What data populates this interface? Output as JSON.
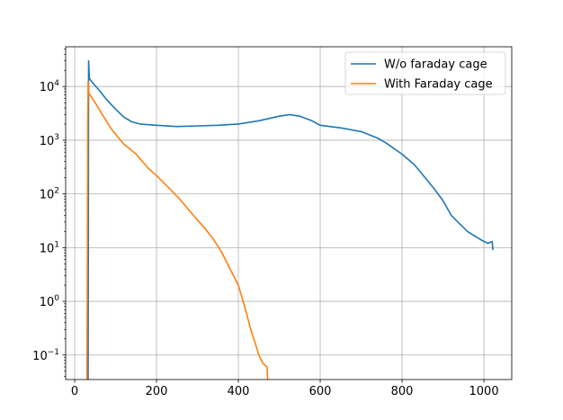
{
  "chart_data": {
    "type": "line",
    "title": "",
    "xlabel": "",
    "ylabel": "",
    "xlim": [
      -22,
      1068
    ],
    "ylim": [
      0.035,
      55000
    ],
    "yscale": "log",
    "grid": true,
    "legend_position": "top-right",
    "x_ticks": [
      {
        "value": 0,
        "label": "0"
      },
      {
        "value": 200,
        "label": "200"
      },
      {
        "value": 400,
        "label": "400"
      },
      {
        "value": 600,
        "label": "600"
      },
      {
        "value": 800,
        "label": "800"
      },
      {
        "value": 1000,
        "label": "1000"
      }
    ],
    "y_ticks": [
      {
        "value": 0.1,
        "base": "10",
        "exp": "−1"
      },
      {
        "value": 1,
        "base": "10",
        "exp": "0"
      },
      {
        "value": 10,
        "base": "10",
        "exp": "1"
      },
      {
        "value": 100,
        "base": "10",
        "exp": "2"
      },
      {
        "value": 1000,
        "base": "10",
        "exp": "3"
      },
      {
        "value": 10000,
        "base": "10",
        "exp": "4"
      }
    ],
    "series": [
      {
        "name": "W/o faraday cage",
        "color": "#1f77b4",
        "points": [
          [
            33,
            0.03
          ],
          [
            34,
            30000
          ],
          [
            36,
            14000
          ],
          [
            45,
            11500
          ],
          [
            60,
            8500
          ],
          [
            80,
            5500
          ],
          [
            100,
            3800
          ],
          [
            120,
            2700
          ],
          [
            140,
            2200
          ],
          [
            160,
            2000
          ],
          [
            200,
            1900
          ],
          [
            250,
            1800
          ],
          [
            300,
            1850
          ],
          [
            350,
            1900
          ],
          [
            400,
            2000
          ],
          [
            450,
            2300
          ],
          [
            500,
            2800
          ],
          [
            525,
            3000
          ],
          [
            550,
            2800
          ],
          [
            580,
            2300
          ],
          [
            600,
            1900
          ],
          [
            650,
            1700
          ],
          [
            700,
            1450
          ],
          [
            740,
            1100
          ],
          [
            760,
            900
          ],
          [
            800,
            550
          ],
          [
            830,
            350
          ],
          [
            850,
            230
          ],
          [
            880,
            120
          ],
          [
            900,
            75
          ],
          [
            920,
            40
          ],
          [
            940,
            28
          ],
          [
            960,
            20
          ],
          [
            980,
            16
          ],
          [
            1000,
            13
          ],
          [
            1010,
            12
          ],
          [
            1020,
            13
          ],
          [
            1022,
            9
          ]
        ]
      },
      {
        "name": "With Faraday cage",
        "color": "#ff7f0e",
        "points": [
          [
            30,
            0.03
          ],
          [
            32,
            2000
          ],
          [
            33,
            12500
          ],
          [
            35,
            7500
          ],
          [
            50,
            5000
          ],
          [
            70,
            2800
          ],
          [
            90,
            1600
          ],
          [
            120,
            850
          ],
          [
            150,
            550
          ],
          [
            180,
            300
          ],
          [
            200,
            220
          ],
          [
            230,
            130
          ],
          [
            260,
            75
          ],
          [
            290,
            40
          ],
          [
            320,
            22
          ],
          [
            340,
            14
          ],
          [
            360,
            8
          ],
          [
            380,
            4
          ],
          [
            400,
            2
          ],
          [
            410,
            1.1
          ],
          [
            420,
            0.6
          ],
          [
            430,
            0.3
          ],
          [
            440,
            0.18
          ],
          [
            450,
            0.1
          ],
          [
            460,
            0.07
          ],
          [
            470,
            0.06
          ],
          [
            472,
            0.03
          ]
        ]
      }
    ]
  }
}
